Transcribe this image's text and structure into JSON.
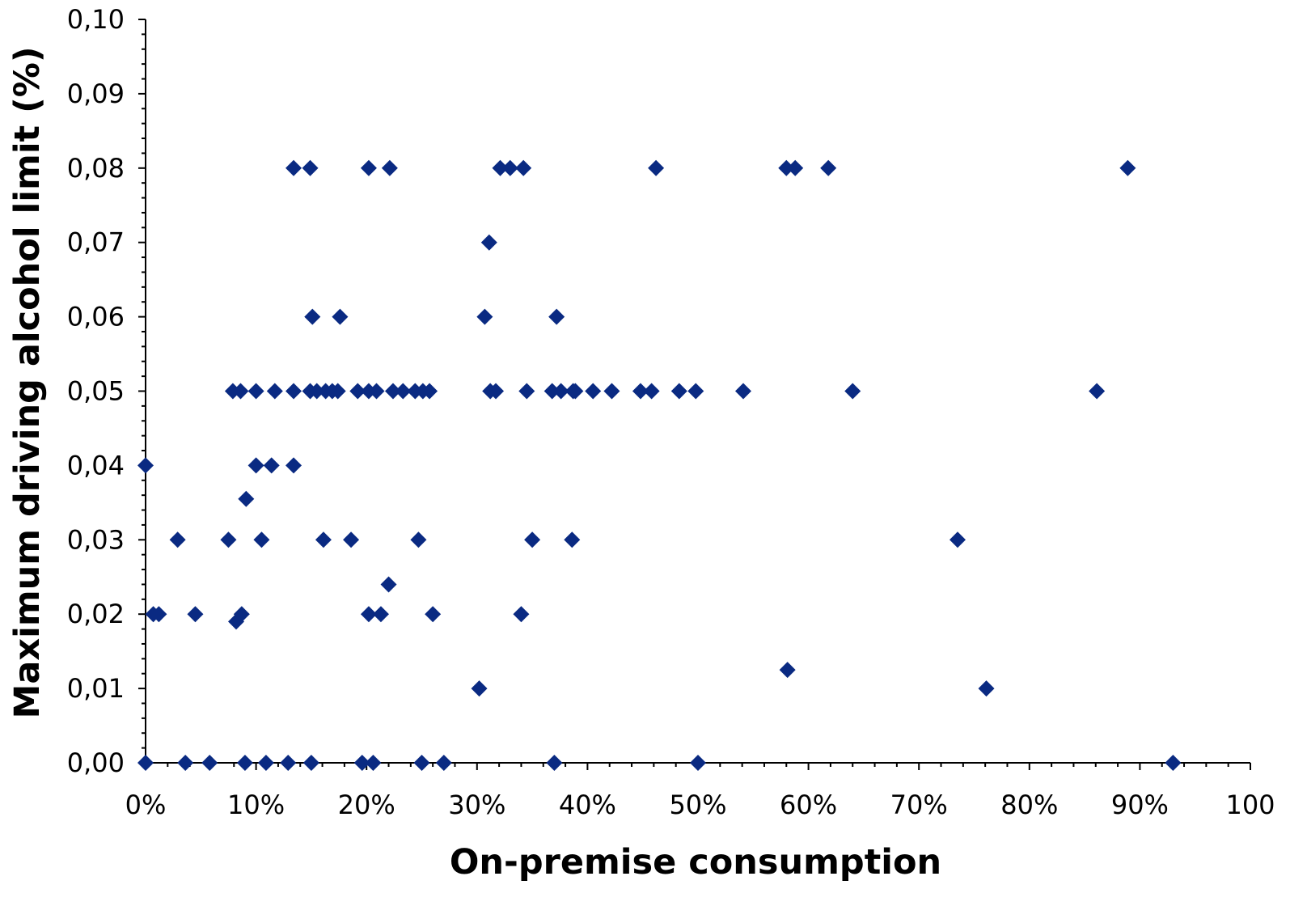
{
  "chart_data": {
    "type": "scatter",
    "title": "",
    "xlabel": "On-premise consumption",
    "ylabel": "Maximum driving alcohol limit (%)",
    "xlim": [
      0,
      100
    ],
    "ylim": [
      0,
      0.1
    ],
    "x_tick_labels": [
      "0%",
      "10%",
      "20%",
      "30%",
      "40%",
      "50%",
      "60%",
      "70%",
      "80%",
      "90%",
      "100"
    ],
    "y_tick_labels": [
      "0,00",
      "0,01",
      "0,02",
      "0,03",
      "0,04",
      "0,05",
      "0,06",
      "0,07",
      "0,08",
      "0,09",
      "0,10"
    ],
    "grid": false,
    "legend": "none",
    "marker_color": "#0a2a82",
    "series": [
      {
        "points": [
          {
            "x": 13.4,
            "y": 0.08
          },
          {
            "x": 14.9,
            "y": 0.08
          },
          {
            "x": 20.2,
            "y": 0.08
          },
          {
            "x": 22.1,
            "y": 0.08
          },
          {
            "x": 32.1,
            "y": 0.08
          },
          {
            "x": 33.0,
            "y": 0.08
          },
          {
            "x": 34.2,
            "y": 0.08
          },
          {
            "x": 46.2,
            "y": 0.08
          },
          {
            "x": 58.0,
            "y": 0.08
          },
          {
            "x": 58.8,
            "y": 0.08
          },
          {
            "x": 61.8,
            "y": 0.08
          },
          {
            "x": 88.9,
            "y": 0.08
          },
          {
            "x": 31.1,
            "y": 0.07
          },
          {
            "x": 15.1,
            "y": 0.06
          },
          {
            "x": 17.6,
            "y": 0.06
          },
          {
            "x": 30.7,
            "y": 0.06
          },
          {
            "x": 37.2,
            "y": 0.06
          },
          {
            "x": 7.9,
            "y": 0.05
          },
          {
            "x": 8.6,
            "y": 0.05
          },
          {
            "x": 10.0,
            "y": 0.05
          },
          {
            "x": 11.7,
            "y": 0.05
          },
          {
            "x": 13.4,
            "y": 0.05
          },
          {
            "x": 14.9,
            "y": 0.05
          },
          {
            "x": 15.5,
            "y": 0.05
          },
          {
            "x": 16.3,
            "y": 0.05
          },
          {
            "x": 16.9,
            "y": 0.05
          },
          {
            "x": 17.4,
            "y": 0.05
          },
          {
            "x": 19.2,
            "y": 0.05
          },
          {
            "x": 20.2,
            "y": 0.05
          },
          {
            "x": 20.9,
            "y": 0.05
          },
          {
            "x": 22.4,
            "y": 0.05
          },
          {
            "x": 23.3,
            "y": 0.05
          },
          {
            "x": 24.4,
            "y": 0.05
          },
          {
            "x": 25.1,
            "y": 0.05
          },
          {
            "x": 25.7,
            "y": 0.05
          },
          {
            "x": 31.2,
            "y": 0.05
          },
          {
            "x": 31.7,
            "y": 0.05
          },
          {
            "x": 34.5,
            "y": 0.05
          },
          {
            "x": 36.8,
            "y": 0.05
          },
          {
            "x": 37.6,
            "y": 0.05
          },
          {
            "x": 38.7,
            "y": 0.05
          },
          {
            "x": 38.9,
            "y": 0.05
          },
          {
            "x": 40.5,
            "y": 0.05
          },
          {
            "x": 42.2,
            "y": 0.05
          },
          {
            "x": 44.8,
            "y": 0.05
          },
          {
            "x": 45.8,
            "y": 0.05
          },
          {
            "x": 48.3,
            "y": 0.05
          },
          {
            "x": 49.8,
            "y": 0.05
          },
          {
            "x": 54.1,
            "y": 0.05
          },
          {
            "x": 64.0,
            "y": 0.05
          },
          {
            "x": 86.1,
            "y": 0.05
          },
          {
            "x": 0.0,
            "y": 0.04
          },
          {
            "x": 10.0,
            "y": 0.04
          },
          {
            "x": 11.4,
            "y": 0.04
          },
          {
            "x": 13.4,
            "y": 0.04
          },
          {
            "x": 9.1,
            "y": 0.0355
          },
          {
            "x": 2.9,
            "y": 0.03
          },
          {
            "x": 7.5,
            "y": 0.03
          },
          {
            "x": 10.5,
            "y": 0.03
          },
          {
            "x": 16.1,
            "y": 0.03
          },
          {
            "x": 18.6,
            "y": 0.03
          },
          {
            "x": 24.7,
            "y": 0.03
          },
          {
            "x": 35.0,
            "y": 0.03
          },
          {
            "x": 38.6,
            "y": 0.03
          },
          {
            "x": 73.5,
            "y": 0.03
          },
          {
            "x": 22.0,
            "y": 0.024
          },
          {
            "x": 0.7,
            "y": 0.02
          },
          {
            "x": 1.2,
            "y": 0.02
          },
          {
            "x": 4.5,
            "y": 0.02
          },
          {
            "x": 8.7,
            "y": 0.02
          },
          {
            "x": 20.2,
            "y": 0.02
          },
          {
            "x": 21.3,
            "y": 0.02
          },
          {
            "x": 26.0,
            "y": 0.02
          },
          {
            "x": 34.0,
            "y": 0.02
          },
          {
            "x": 8.2,
            "y": 0.019
          },
          {
            "x": 58.1,
            "y": 0.0125
          },
          {
            "x": 30.2,
            "y": 0.01
          },
          {
            "x": 76.1,
            "y": 0.01
          },
          {
            "x": 0.0,
            "y": 0.0
          },
          {
            "x": 3.6,
            "y": 0.0
          },
          {
            "x": 5.8,
            "y": 0.0
          },
          {
            "x": 9.0,
            "y": 0.0
          },
          {
            "x": 10.9,
            "y": 0.0
          },
          {
            "x": 12.9,
            "y": 0.0
          },
          {
            "x": 15.0,
            "y": 0.0
          },
          {
            "x": 19.6,
            "y": 0.0
          },
          {
            "x": 20.6,
            "y": 0.0
          },
          {
            "x": 25.0,
            "y": 0.0
          },
          {
            "x": 27.0,
            "y": 0.0
          },
          {
            "x": 37.0,
            "y": 0.0
          },
          {
            "x": 50.0,
            "y": 0.0
          },
          {
            "x": 93.0,
            "y": 0.0
          }
        ]
      }
    ]
  }
}
